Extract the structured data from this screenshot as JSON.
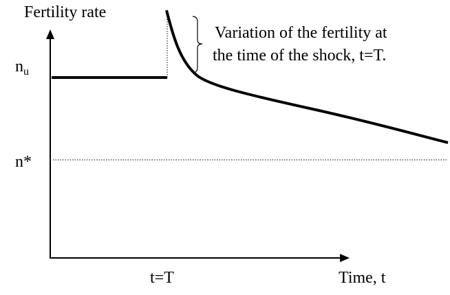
{
  "y_axis_label": "Fertility rate",
  "n_u": {
    "base": "n",
    "sub": "u"
  },
  "n_star": "n*",
  "t_label": "t=T",
  "x_axis_label": "Time, t",
  "annotation": [
    "Variation of the fertility at",
    "the time of the shock, t=T."
  ]
}
